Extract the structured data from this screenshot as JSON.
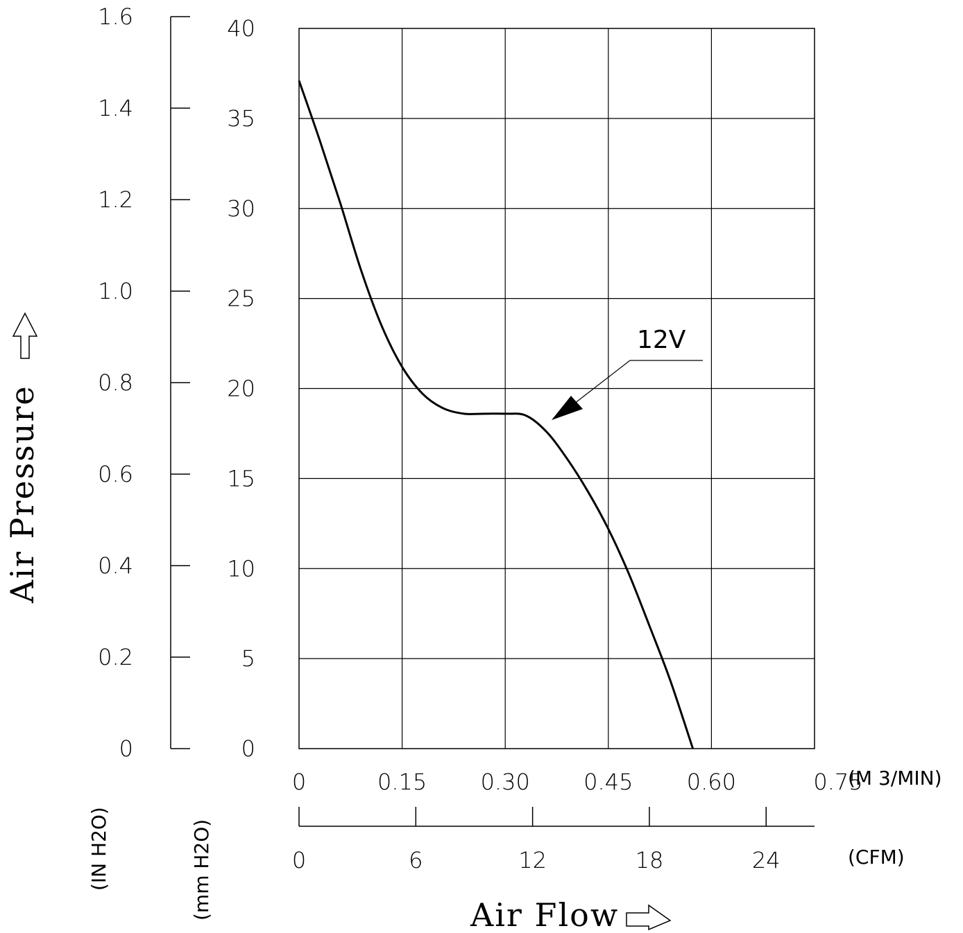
{
  "chart_data": {
    "type": "line",
    "title": "",
    "ylabel": "Air Pressure",
    "xlabel": "Air Flow",
    "y_unit_mm": "(mm H2O)",
    "y_unit_in": "(IN H2O)",
    "x_unit_m3": "(M 3/MIN)",
    "x_unit_cfm": "(CFM)",
    "ylim": [
      0,
      40
    ],
    "xlim": [
      0,
      0.75
    ],
    "y_ticks_mm": [
      "0",
      "5",
      "10",
      "15",
      "20",
      "25",
      "30",
      "35",
      "40"
    ],
    "y_ticks_in": [
      "0",
      "0.2",
      "0.4",
      "0.6",
      "0.8",
      "1.0",
      "1.2",
      "1.4",
      "1.6"
    ],
    "x_ticks_m3": [
      "0",
      "0.15",
      "0.30",
      "0.45",
      "0.60",
      "0.75"
    ],
    "x_ticks_cfm": [
      "0",
      "6",
      "12",
      "18",
      "24"
    ],
    "grid": true,
    "series": [
      {
        "name": "12V",
        "x": [
          0,
          0.03,
          0.06,
          0.09,
          0.12,
          0.15,
          0.18,
          0.21,
          0.24,
          0.27,
          0.3,
          0.33,
          0.36,
          0.39,
          0.42,
          0.45,
          0.48,
          0.51,
          0.54,
          0.573
        ],
        "y": [
          37.1,
          33.8,
          30.3,
          26.6,
          23.5,
          21.2,
          19.7,
          18.9,
          18.6,
          18.6,
          18.6,
          18.5,
          17.6,
          16.1,
          14.3,
          12.2,
          9.7,
          6.8,
          3.8,
          0
        ]
      }
    ]
  }
}
